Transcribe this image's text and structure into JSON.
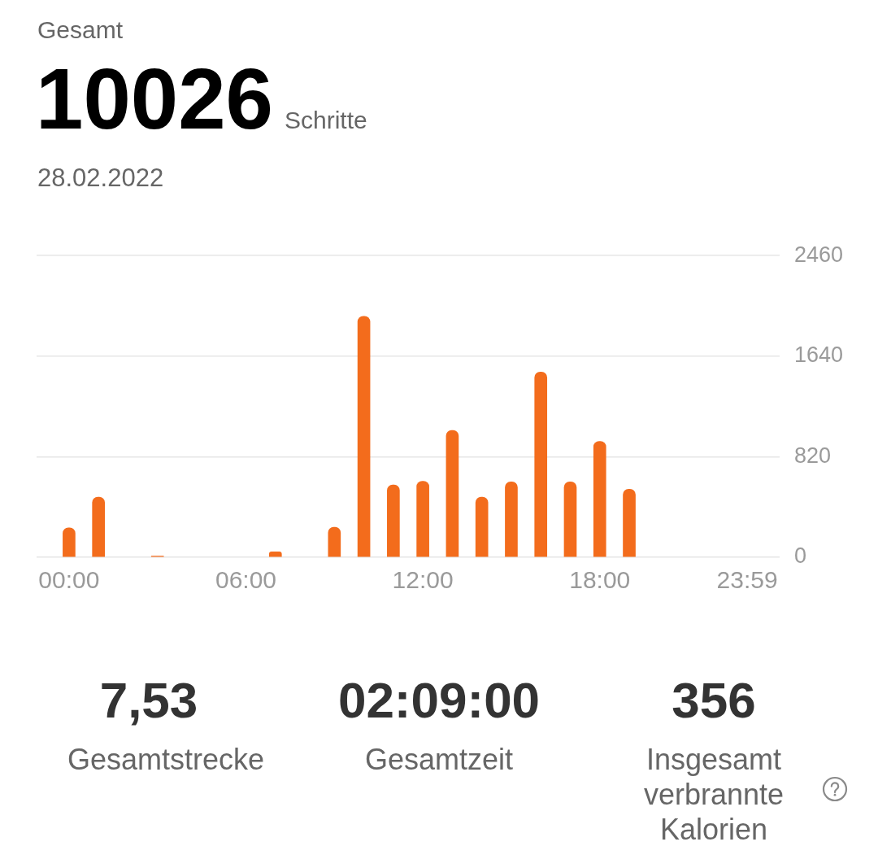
{
  "chart_data": [
    {
      "type": "bar",
      "title": "Gesamt",
      "subtitle": "28.02.2022",
      "annotations": [
        "10026",
        "Schritte"
      ],
      "categories": [
        "00:00",
        null,
        null,
        null,
        null,
        null,
        "06:00",
        null,
        null,
        null,
        null,
        null,
        "12:00",
        null,
        null,
        null,
        null,
        null,
        "18:00",
        null,
        null,
        null,
        null,
        "23:59"
      ],
      "values": [
        240,
        490,
        null,
        10,
        null,
        null,
        null,
        45,
        null,
        245,
        1965,
        590,
        620,
        1035,
        490,
        615,
        1510,
        615,
        945,
        555,
        null,
        null,
        null,
        null
      ],
      "color": "#f36c1c",
      "ylim": [
        0,
        2460
      ],
      "yticks": [
        0,
        820,
        1640,
        2460
      ],
      "grid": "y"
    },
    {
      "type": "other",
      "annotations": [
        "7,53",
        "Gesamtstrecke",
        "02:09:00",
        "Gesamtzeit",
        "356",
        "Insgesamt verbrannte Kalorien"
      ]
    }
  ]
}
